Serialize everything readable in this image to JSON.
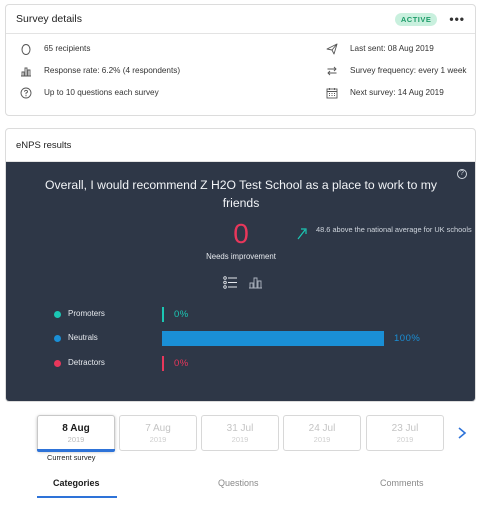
{
  "survey_details": {
    "title": "Survey details",
    "status": "ACTIVE",
    "more_label": "•••",
    "left": [
      {
        "icon": "person-icon",
        "text": "65 recipients"
      },
      {
        "icon": "bar-chart-icon",
        "text": "Response rate: 6.2% (4 respondents)"
      },
      {
        "icon": "question-circle-icon",
        "text": "Up to 10 questions each survey"
      }
    ],
    "right": [
      {
        "icon": "send-icon",
        "text": "Last sent: 08 Aug 2019"
      },
      {
        "icon": "repeat-icon",
        "text": "Survey frequency: every 1 week"
      },
      {
        "icon": "calendar-icon",
        "text": "Next survey: 14 Aug 2019"
      }
    ]
  },
  "enps": {
    "title": "eNPS results",
    "help": "?",
    "headline": "Overall, I would recommend Z H2O Test School as a place to work to my friends",
    "score": "0",
    "score_label": "Needs improvement",
    "comparison": "48.6 above the national average for UK schools",
    "breakdown": [
      {
        "label": "Promoters",
        "value": "0%",
        "fraction": 0.0,
        "color": "#1bc7b4"
      },
      {
        "label": "Neutrals",
        "value": "100%",
        "fraction": 1.0,
        "color": "#1a8fd6"
      },
      {
        "label": "Detractors",
        "value": "0%",
        "fraction": 0.0,
        "color": "#e8375b"
      }
    ],
    "accent_red": "#e8375b",
    "accent_teal": "#1bc7b4"
  },
  "surveys": [
    {
      "date": "8 Aug",
      "year": "2019"
    },
    {
      "date": "7 Aug",
      "year": "2019"
    },
    {
      "date": "31 Jul",
      "year": "2019"
    },
    {
      "date": "24 Jul",
      "year": "2019"
    },
    {
      "date": "23 Jul",
      "year": "2019"
    }
  ],
  "current_survey_label": "Current survey",
  "tabs": [
    {
      "label": "Categories"
    },
    {
      "label": "Questions"
    },
    {
      "label": "Comments"
    }
  ],
  "brand_blue": "#2e73d8"
}
